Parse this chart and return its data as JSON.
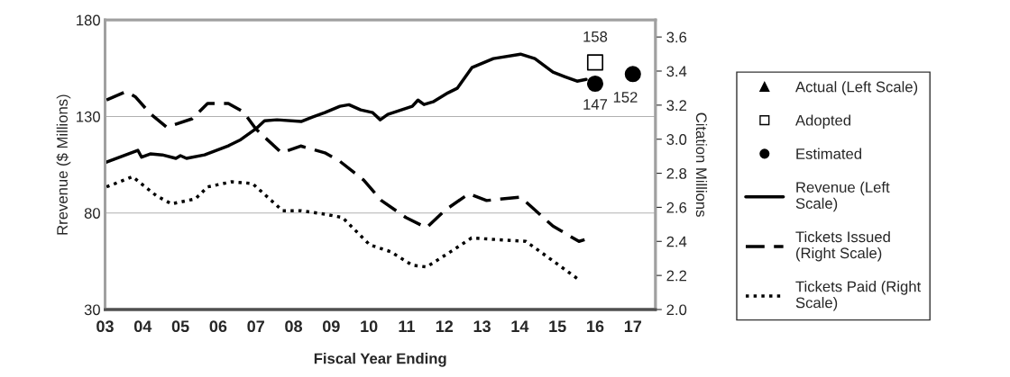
{
  "chart_data": {
    "type": "line",
    "xlabel": "Fiscal Year Ending",
    "ylabel": "Rrevenue ($ Millions)",
    "y2label": "Citation Millions",
    "xlim": [
      3,
      17.6
    ],
    "xticks": [
      {
        "value": 3,
        "label": "03"
      },
      {
        "value": 4,
        "label": "04"
      },
      {
        "value": 5,
        "label": "05"
      },
      {
        "value": 6,
        "label": "06"
      },
      {
        "value": 7,
        "label": "07"
      },
      {
        "value": 8,
        "label": "08"
      },
      {
        "value": 9,
        "label": "09"
      },
      {
        "value": 10,
        "label": "10"
      },
      {
        "value": 11,
        "label": "11"
      },
      {
        "value": 12,
        "label": "12"
      },
      {
        "value": 13,
        "label": "13"
      },
      {
        "value": 14,
        "label": "14"
      },
      {
        "value": 15,
        "label": "15"
      },
      {
        "value": 16,
        "label": "16"
      },
      {
        "value": 17,
        "label": "17"
      }
    ],
    "ylim": [
      30,
      180
    ],
    "yticks": [
      30,
      80,
      130,
      180
    ],
    "y2lim": [
      2.0,
      3.7
    ],
    "y2ticks": [
      {
        "value": 2.0,
        "label": "2.0"
      },
      {
        "value": 2.2,
        "label": "2.2"
      },
      {
        "value": 2.4,
        "label": "2.4"
      },
      {
        "value": 2.6,
        "label": "2.6"
      },
      {
        "value": 2.8,
        "label": "2.8"
      },
      {
        "value": 3.0,
        "label": "3.0"
      },
      {
        "value": 3.2,
        "label": "3.2"
      },
      {
        "value": 3.4,
        "label": "3.4"
      },
      {
        "value": 3.6,
        "label": "3.6"
      }
    ],
    "grid": "y",
    "legend": "right",
    "series": [
      {
        "name": "Actual (Left Scale)",
        "type": "scatter",
        "marker": "triangle",
        "color": "#000000"
      },
      {
        "name": "Adopted",
        "type": "scatter",
        "marker": "square",
        "color": "#000000",
        "x": [
          16
        ],
        "values": [
          158
        ],
        "value_labels": [
          "158"
        ]
      },
      {
        "name": "Estimated",
        "type": "scatter",
        "marker": "circle",
        "color": "#000000",
        "x": [
          16,
          17
        ],
        "values": [
          147,
          152
        ],
        "value_labels": [
          "147",
          "152"
        ]
      },
      {
        "name": "Revenue (Left\nScale)",
        "line_style": "solid",
        "color": "#000000",
        "x": [
          3.04,
          3.87,
          3.97,
          4.2,
          4.52,
          4.88,
          5.0,
          5.16,
          5.64,
          6.27,
          6.6,
          7.0,
          7.23,
          7.56,
          8.2,
          8.5,
          8.83,
          9.23,
          9.47,
          9.78,
          10.1,
          10.3,
          10.5,
          11.15,
          11.3,
          11.46,
          11.7,
          12.1,
          12.34,
          12.73,
          13.3,
          14.02,
          14.4,
          14.88,
          15.2,
          15.52,
          15.76
        ],
        "values": [
          106.4,
          112.5,
          108.9,
          110.6,
          110.1,
          108.3,
          109.7,
          108.3,
          110.1,
          114.8,
          118.0,
          123.6,
          127.8,
          128.3,
          127.4,
          129.7,
          132.0,
          135.3,
          136.1,
          133.4,
          132.0,
          128.3,
          131.1,
          135.3,
          138.5,
          136.2,
          137.6,
          142.3,
          144.6,
          155.3,
          160.0,
          162.3,
          160.0,
          153.0,
          150.6,
          148.3,
          149.2
        ]
      },
      {
        "name": "Tickets Issued\n(Right Scale)",
        "axis": "y2",
        "line_style": "dashed",
        "color": "#000000",
        "x": [
          3.04,
          3.56,
          3.8,
          4.2,
          4.64,
          5.31,
          5.72,
          6.27,
          6.67,
          7.0,
          7.68,
          8.19,
          8.83,
          9.23,
          9.86,
          10.33,
          10.98,
          11.53,
          12.0,
          12.65,
          13.12,
          14.02,
          14.88,
          15.57,
          15.72
        ],
        "values": [
          3.23,
          3.28,
          3.25,
          3.15,
          3.07,
          3.12,
          3.21,
          3.21,
          3.16,
          3.06,
          2.92,
          2.96,
          2.92,
          2.87,
          2.76,
          2.64,
          2.54,
          2.48,
          2.58,
          2.68,
          2.64,
          2.66,
          2.49,
          2.4,
          2.41
        ]
      },
      {
        "name": "Tickets Paid (Right\nScale)",
        "axis": "y2",
        "line_style": "dotted",
        "color": "#000000",
        "x": [
          3.04,
          3.73,
          4.35,
          4.76,
          5.4,
          5.72,
          6.36,
          6.91,
          7.71,
          8.19,
          8.83,
          9.3,
          10.02,
          10.57,
          11.15,
          11.53,
          12.17,
          12.72,
          13.44,
          14.16,
          14.73,
          15.6
        ],
        "values": [
          2.72,
          2.78,
          2.67,
          2.62,
          2.65,
          2.72,
          2.75,
          2.74,
          2.58,
          2.58,
          2.56,
          2.54,
          2.38,
          2.34,
          2.26,
          2.25,
          2.34,
          2.42,
          2.41,
          2.4,
          2.31,
          2.17
        ]
      }
    ]
  }
}
